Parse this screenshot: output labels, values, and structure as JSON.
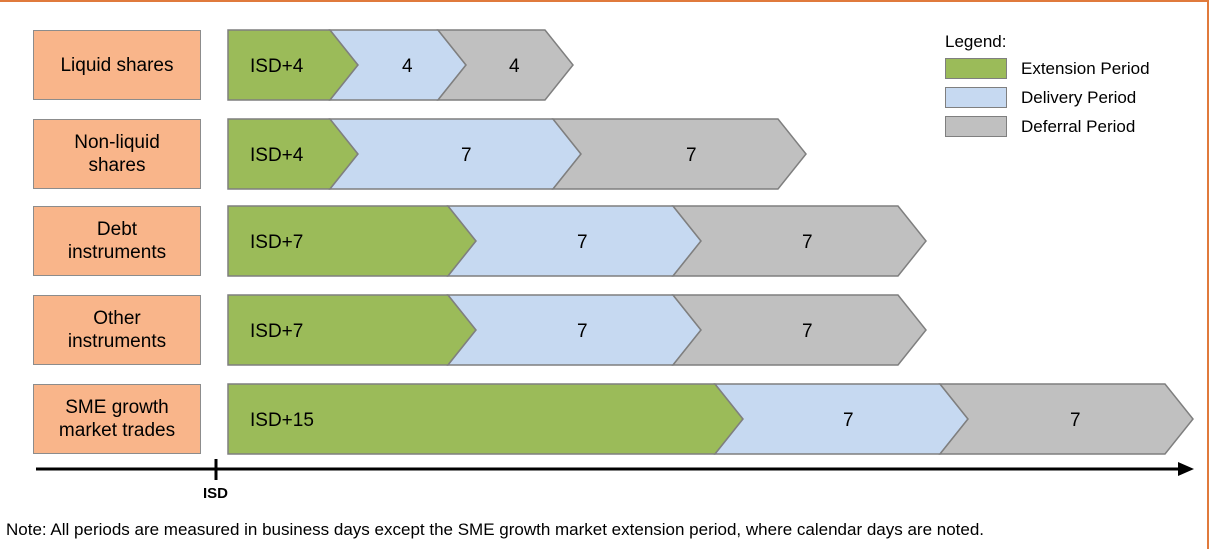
{
  "colors": {
    "extension": "#9bbb59",
    "delivery": "#c6d9f1",
    "deferral": "#c0c0c0",
    "row_label_fill": "#f9b58a",
    "frame": "#e07a3c"
  },
  "legend": {
    "title": "Legend:",
    "items": [
      {
        "label": "Extension Period",
        "color": "#9bbb59"
      },
      {
        "label": "Delivery Period",
        "color": "#c6d9f1"
      },
      {
        "label": "Deferral Period",
        "color": "#c0c0c0"
      }
    ]
  },
  "rows": [
    {
      "label_lines": [
        "Liquid shares"
      ],
      "extension": "ISD+4",
      "delivery": "4",
      "deferral": "4"
    },
    {
      "label_lines": [
        "Non-liquid",
        "shares"
      ],
      "extension": "ISD+4",
      "delivery": "7",
      "deferral": "7"
    },
    {
      "label_lines": [
        "Debt",
        "instruments"
      ],
      "extension": "ISD+7",
      "delivery": "7",
      "deferral": "7"
    },
    {
      "label_lines": [
        "Other",
        "instruments"
      ],
      "extension": "ISD+7",
      "delivery": "7",
      "deferral": "7"
    },
    {
      "label_lines": [
        "SME growth",
        "market trades"
      ],
      "extension": "ISD+15",
      "delivery": "7",
      "deferral": "7"
    }
  ],
  "axis": {
    "marker_label": "ISD"
  },
  "note": "Note: All periods are measured in business days except the SME growth market extension period, where calendar days are noted."
}
